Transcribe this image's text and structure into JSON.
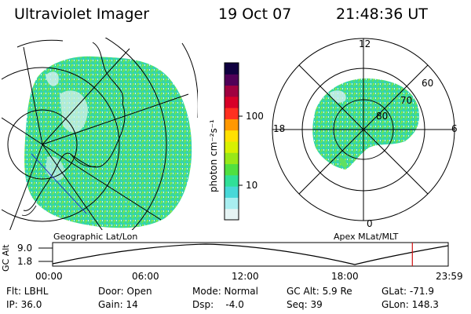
{
  "header": {
    "title": "Ultraviolet Imager",
    "date": "19 Oct 07",
    "time": "21:48:36 UT"
  },
  "left_panel": {
    "caption": "Geographic Lat/Lon"
  },
  "right_panel": {
    "caption": "Apex MLat/MLT",
    "mlt_labels": [
      "12",
      "18",
      "6",
      "0"
    ],
    "lat_labels": [
      "60",
      "70",
      "80"
    ]
  },
  "colorbar": {
    "label": "photon cm⁻²s⁻¹",
    "ticks": [
      "100",
      "10"
    ],
    "colors": [
      "#e6f4f4",
      "#a8eef0",
      "#48d8d8",
      "#30e098",
      "#50e040",
      "#98e818",
      "#d8f000",
      "#ffe000",
      "#ff9800",
      "#ff3020",
      "#d80028",
      "#a00040",
      "#500058",
      "#100040"
    ]
  },
  "timeline": {
    "ylabel": "GC Alt",
    "yticks": [
      "9.0",
      "1.8"
    ],
    "xticks": [
      "00:00",
      "06:00",
      "12:00",
      "18:00",
      "23:59"
    ],
    "marker_fraction": 0.9093,
    "marker_color": "#d01010"
  },
  "info": {
    "flt": "Flt: LBHL",
    "ip": "IP: 36.0",
    "door": "Door: Open",
    "gain": "Gain: 14",
    "mode": "Mode: Normal",
    "dsp": "Dsp:    -4.0",
    "gcalt": "GC Alt: 5.9 Re",
    "seq": "Seq: 39",
    "glat": "GLat: -71.9",
    "glon": "GLon: 148.3"
  }
}
